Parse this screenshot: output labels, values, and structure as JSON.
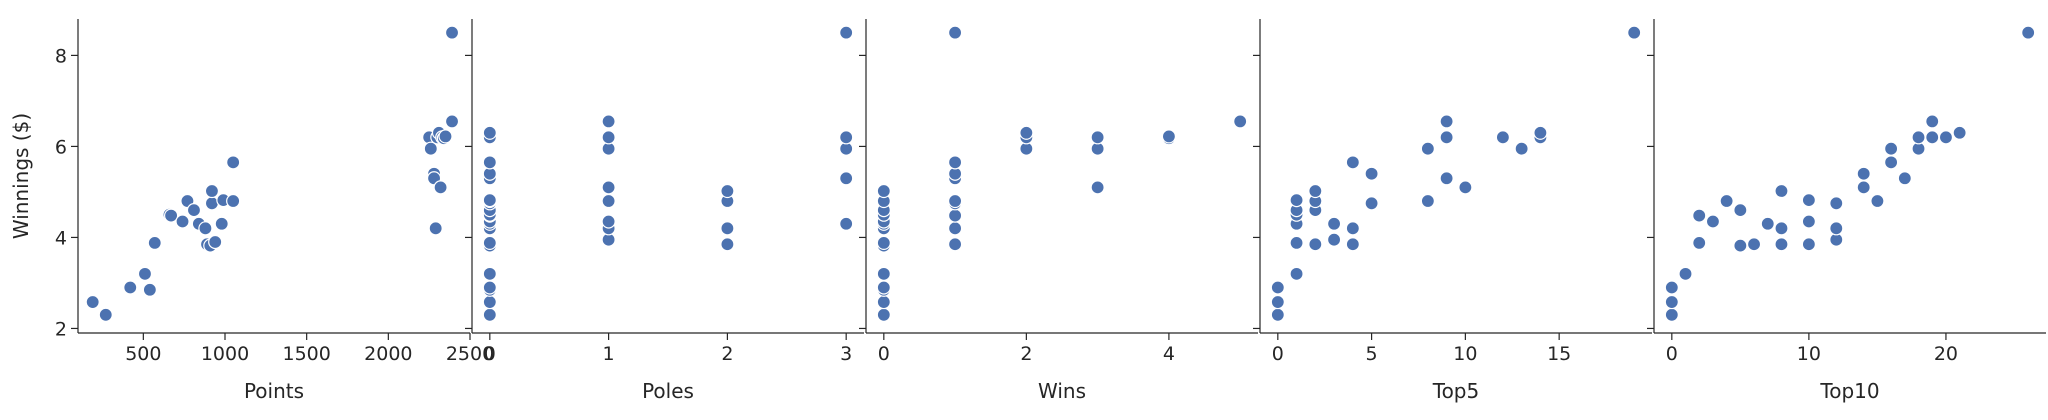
{
  "chart_data": [
    {
      "type": "scatter",
      "xlabel": "Points",
      "ylabel": "Winnings ($)",
      "xlim": [
        100,
        2500
      ],
      "ylim": [
        1.9,
        8.8
      ],
      "xticks": [
        500,
        1000,
        1500,
        2000,
        2500
      ],
      "yticks": [
        2,
        4,
        6,
        8
      ],
      "points": [
        [
          190,
          2.58
        ],
        [
          270,
          2.3
        ],
        [
          420,
          2.9
        ],
        [
          510,
          3.2
        ],
        [
          540,
          2.85
        ],
        [
          570,
          3.88
        ],
        [
          660,
          4.5
        ],
        [
          670,
          4.48
        ],
        [
          740,
          4.35
        ],
        [
          770,
          4.8
        ],
        [
          810,
          4.6
        ],
        [
          840,
          4.3
        ],
        [
          880,
          4.2
        ],
        [
          890,
          3.85
        ],
        [
          910,
          3.82
        ],
        [
          920,
          4.75
        ],
        [
          920,
          5.02
        ],
        [
          940,
          3.9
        ],
        [
          980,
          4.3
        ],
        [
          990,
          4.82
        ],
        [
          1050,
          4.8
        ],
        [
          1050,
          5.65
        ],
        [
          2250,
          6.2
        ],
        [
          2260,
          5.95
        ],
        [
          2280,
          5.4
        ],
        [
          2280,
          5.3
        ],
        [
          2290,
          4.2
        ],
        [
          2300,
          6.2
        ],
        [
          2310,
          6.3
        ],
        [
          2320,
          5.1
        ],
        [
          2330,
          6.2
        ],
        [
          2340,
          6.18
        ],
        [
          2350,
          6.22
        ],
        [
          2390,
          6.55
        ],
        [
          2390,
          8.5
        ]
      ]
    },
    {
      "type": "scatter",
      "xlabel": "Poles",
      "xlim": [
        -0.15,
        3.15
      ],
      "xticks": [
        0,
        1,
        2,
        3
      ],
      "points": [
        [
          0,
          2.3
        ],
        [
          0,
          2.58
        ],
        [
          0,
          2.85
        ],
        [
          0,
          2.9
        ],
        [
          0,
          3.2
        ],
        [
          0,
          3.82
        ],
        [
          0,
          3.88
        ],
        [
          0,
          4.2
        ],
        [
          0,
          4.3
        ],
        [
          0,
          4.35
        ],
        [
          0,
          4.48
        ],
        [
          0,
          4.5
        ],
        [
          0,
          4.6
        ],
        [
          0,
          4.75
        ],
        [
          0,
          4.8
        ],
        [
          0,
          4.82
        ],
        [
          0,
          5.3
        ],
        [
          0,
          5.4
        ],
        [
          0,
          5.65
        ],
        [
          0,
          6.2
        ],
        [
          0,
          6.3
        ],
        [
          1,
          3.95
        ],
        [
          1,
          4.2
        ],
        [
          1,
          4.35
        ],
        [
          1,
          4.8
        ],
        [
          1,
          5.1
        ],
        [
          1,
          5.95
        ],
        [
          1,
          6.2
        ],
        [
          1,
          6.55
        ],
        [
          2,
          3.85
        ],
        [
          2,
          4.2
        ],
        [
          2,
          4.8
        ],
        [
          2,
          5.02
        ],
        [
          3,
          4.3
        ],
        [
          3,
          5.3
        ],
        [
          3,
          5.95
        ],
        [
          3,
          6.2
        ],
        [
          3,
          8.5
        ]
      ]
    },
    {
      "type": "scatter",
      "xlabel": "Wins",
      "xlim": [
        -0.25,
        5.25
      ],
      "xticks": [
        0,
        2,
        4
      ],
      "points": [
        [
          0,
          2.3
        ],
        [
          0,
          2.58
        ],
        [
          0,
          2.85
        ],
        [
          0,
          2.9
        ],
        [
          0,
          3.2
        ],
        [
          0,
          3.82
        ],
        [
          0,
          3.88
        ],
        [
          0,
          4.2
        ],
        [
          0,
          4.3
        ],
        [
          0,
          4.35
        ],
        [
          0,
          4.5
        ],
        [
          0,
          4.6
        ],
        [
          0,
          4.8
        ],
        [
          0,
          5.02
        ],
        [
          1,
          3.85
        ],
        [
          1,
          4.2
        ],
        [
          1,
          4.48
        ],
        [
          1,
          4.75
        ],
        [
          1,
          4.8
        ],
        [
          1,
          5.3
        ],
        [
          1,
          5.4
        ],
        [
          1,
          5.65
        ],
        [
          1,
          8.5
        ],
        [
          2,
          5.95
        ],
        [
          2,
          6.2
        ],
        [
          2,
          6.3
        ],
        [
          3,
          5.1
        ],
        [
          3,
          5.95
        ],
        [
          3,
          6.2
        ],
        [
          4,
          6.18
        ],
        [
          4,
          6.22
        ],
        [
          5,
          6.55
        ]
      ]
    },
    {
      "type": "scatter",
      "xlabel": "Top5",
      "xlim": [
        -0.95,
        19.95
      ],
      "xticks": [
        0,
        5,
        10,
        15
      ],
      "points": [
        [
          0,
          2.3
        ],
        [
          0,
          2.58
        ],
        [
          0,
          2.9
        ],
        [
          1,
          3.2
        ],
        [
          1,
          3.88
        ],
        [
          1,
          4.3
        ],
        [
          1,
          4.5
        ],
        [
          1,
          4.6
        ],
        [
          1,
          4.82
        ],
        [
          2,
          3.85
        ],
        [
          2,
          4.6
        ],
        [
          2,
          4.8
        ],
        [
          2,
          5.02
        ],
        [
          3,
          3.95
        ],
        [
          3,
          4.3
        ],
        [
          4,
          3.85
        ],
        [
          4,
          4.2
        ],
        [
          4,
          5.65
        ],
        [
          5,
          4.75
        ],
        [
          5,
          5.4
        ],
        [
          8,
          4.8
        ],
        [
          8,
          5.95
        ],
        [
          9,
          5.3
        ],
        [
          9,
          6.2
        ],
        [
          9,
          6.55
        ],
        [
          10,
          5.1
        ],
        [
          12,
          6.2
        ],
        [
          13,
          5.95
        ],
        [
          14,
          6.2
        ],
        [
          14,
          6.3
        ],
        [
          19,
          8.5
        ]
      ]
    },
    {
      "type": "scatter",
      "xlabel": "Top10",
      "xlim": [
        -1.3,
        27.3
      ],
      "xticks": [
        0,
        10,
        20
      ],
      "points": [
        [
          0,
          2.3
        ],
        [
          0,
          2.58
        ],
        [
          0,
          2.9
        ],
        [
          1,
          3.2
        ],
        [
          2,
          3.88
        ],
        [
          2,
          4.48
        ],
        [
          3,
          4.35
        ],
        [
          4,
          4.8
        ],
        [
          5,
          3.82
        ],
        [
          5,
          4.6
        ],
        [
          6,
          3.85
        ],
        [
          7,
          4.3
        ],
        [
          8,
          3.85
        ],
        [
          8,
          4.2
        ],
        [
          8,
          5.02
        ],
        [
          10,
          3.85
        ],
        [
          10,
          4.35
        ],
        [
          10,
          4.82
        ],
        [
          12,
          3.95
        ],
        [
          12,
          4.2
        ],
        [
          12,
          4.75
        ],
        [
          14,
          5.1
        ],
        [
          14,
          5.4
        ],
        [
          15,
          4.8
        ],
        [
          16,
          5.65
        ],
        [
          16,
          5.95
        ],
        [
          17,
          5.3
        ],
        [
          18,
          5.95
        ],
        [
          18,
          6.2
        ],
        [
          19,
          6.2
        ],
        [
          19,
          6.55
        ],
        [
          20,
          6.2
        ],
        [
          21,
          6.3
        ],
        [
          26,
          8.5
        ]
      ]
    }
  ]
}
